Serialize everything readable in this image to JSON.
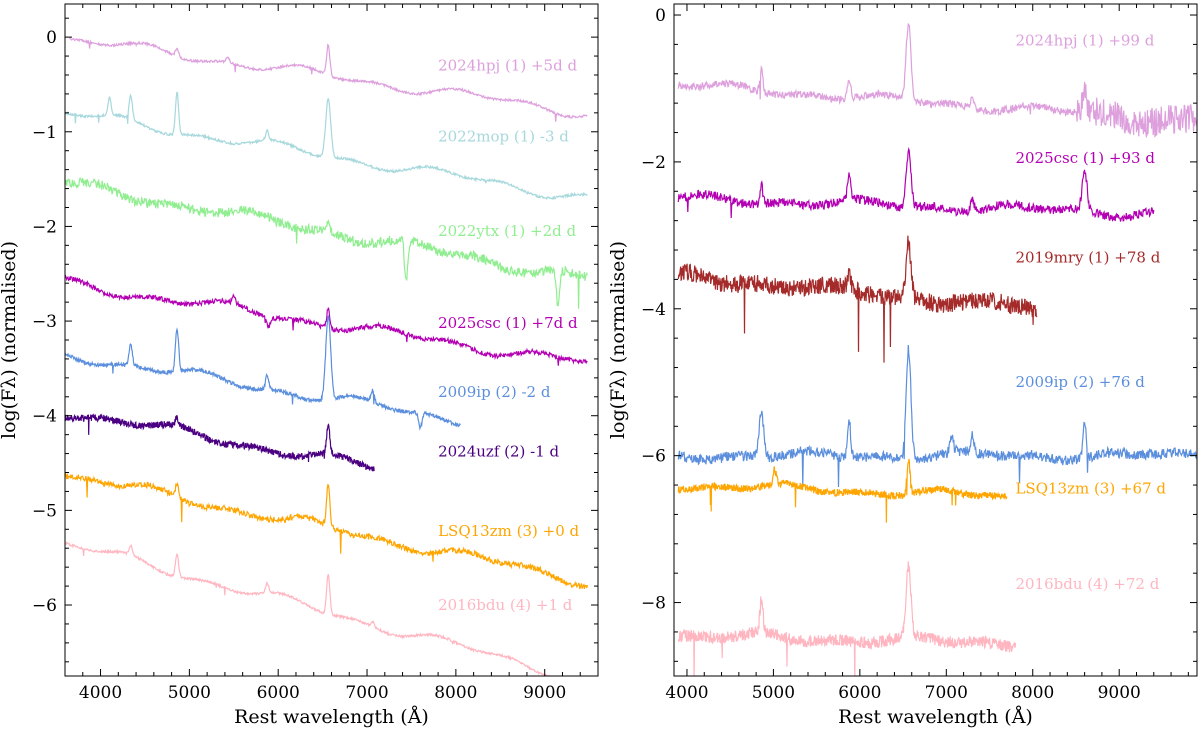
{
  "chart_data": [
    {
      "type": "line",
      "xlabel": "Rest wavelength (Å)",
      "ylabel": "log(Fλ) (normalised)",
      "xlim": [
        3600,
        9600
      ],
      "ylim": [
        -6.75,
        0.35
      ],
      "xticks": [
        4000,
        5000,
        6000,
        7000,
        8000,
        9000
      ],
      "yticks": [
        0,
        -1,
        -2,
        -3,
        -4,
        -5,
        -6
      ],
      "grid": false,
      "legend": "none",
      "series": [
        {
          "name": "2024hpj (1) +5d d",
          "color": "#dda0dd",
          "x_range": [
            3650,
            9480
          ],
          "y_start": -0.02,
          "y_end": -0.8,
          "noise": 0.012,
          "label_xy": [
            7800,
            -0.3
          ],
          "lines": [
            [
              4861,
              0.08
            ],
            [
              6563,
              0.32
            ],
            [
              5430,
              0.06
            ]
          ]
        },
        {
          "name": "2022mop (1) -3 d",
          "color": "#a6d8dc",
          "x_range": [
            3600,
            9480
          ],
          "y_start": -0.8,
          "y_end": -1.7,
          "noise": 0.012,
          "label_xy": [
            7800,
            -1.05
          ],
          "lines": [
            [
              4101,
              0.18
            ],
            [
              4340,
              0.25
            ],
            [
              4861,
              0.45
            ],
            [
              5876,
              0.1
            ],
            [
              6563,
              0.62
            ]
          ]
        },
        {
          "name": "2022ytx (1) +2d d",
          "color": "#90ee90",
          "x_range": [
            3600,
            9480
          ],
          "y_start": -1.55,
          "y_end": -2.55,
          "noise": 0.05,
          "label_xy": [
            7800,
            -2.05
          ],
          "lines": [
            [
              6563,
              0.15
            ],
            [
              7440,
              -0.45
            ],
            [
              9150,
              -0.4
            ]
          ]
        },
        {
          "name": "2025csc (1) +7d d",
          "color": "#b300b3",
          "x_range": [
            3600,
            9480
          ],
          "y_start": -2.6,
          "y_end": -3.45,
          "noise": 0.025,
          "label_xy": [
            7800,
            -3.02
          ],
          "lines": [
            [
              5500,
              0.08
            ],
            [
              5890,
              -0.1
            ],
            [
              6563,
              0.2
            ]
          ]
        },
        {
          "name": "2009ip (2) -2 d",
          "color": "#5b8fdd",
          "x_range": [
            3600,
            8050
          ],
          "y_start": -3.35,
          "y_end": -4.05,
          "noise": 0.02,
          "label_xy": [
            7800,
            -3.75
          ],
          "lines": [
            [
              4340,
              0.22
            ],
            [
              4861,
              0.45
            ],
            [
              5876,
              0.15
            ],
            [
              6563,
              0.88
            ],
            [
              7065,
              0.12
            ],
            [
              7600,
              -0.15
            ]
          ]
        },
        {
          "name": "2024uzf (2) -1 d",
          "color": "#4b0082",
          "x_range": [
            3600,
            7080
          ],
          "y_start": -3.95,
          "y_end": -4.55,
          "noise": 0.035,
          "label_xy": [
            7800,
            -4.38
          ],
          "lines": [
            [
              4861,
              0.08
            ],
            [
              6563,
              0.3
            ]
          ]
        },
        {
          "name": "LSQ13zm (3) +0 d",
          "color": "#ffa500",
          "x_range": [
            3600,
            9480
          ],
          "y_start": -4.62,
          "y_end": -5.75,
          "noise": 0.03,
          "label_xy": [
            7800,
            -5.22
          ],
          "lines": [
            [
              4861,
              0.15
            ],
            [
              6563,
              0.45
            ]
          ]
        },
        {
          "name": "2016bdu (4) +1 d",
          "color": "#ffb6c1",
          "x_range": [
            3600,
            9300
          ],
          "y_start": -5.35,
          "y_end": -6.75,
          "noise": 0.012,
          "label_xy": [
            7800,
            -6.0
          ],
          "lines": [
            [
              4340,
              0.1
            ],
            [
              4861,
              0.25
            ],
            [
              5876,
              0.1
            ],
            [
              6563,
              0.42
            ],
            [
              7065,
              0.05
            ]
          ]
        }
      ]
    },
    {
      "type": "line",
      "xlabel": "Rest wavelength (Å)",
      "ylabel": "log(Fλ) (normalised)",
      "xlim": [
        3850,
        9900
      ],
      "ylim": [
        -9.0,
        0.15
      ],
      "xticks": [
        4000,
        5000,
        6000,
        7000,
        8000,
        9000
      ],
      "yticks": [
        0,
        -2,
        -4,
        -6,
        -8
      ],
      "grid": false,
      "legend": "none",
      "series": [
        {
          "name": "2024hpj (1) +99 d",
          "color": "#dda0dd",
          "x_range": [
            3900,
            9900
          ],
          "y_start": -0.95,
          "y_end": -1.45,
          "noise": 0.05,
          "label_xy": [
            7800,
            -0.35
          ],
          "lines": [
            [
              4861,
              0.3
            ],
            [
              5876,
              0.25
            ],
            [
              6563,
              1.05
            ],
            [
              7300,
              0.15
            ],
            [
              8600,
              0.4
            ]
          ],
          "noisy_tail": 8500
        },
        {
          "name": "2025csc (1) +93 d",
          "color": "#b300b3",
          "x_range": [
            3900,
            9400
          ],
          "y_start": -2.5,
          "y_end": -2.7,
          "noise": 0.06,
          "label_xy": [
            7800,
            -1.95
          ],
          "lines": [
            [
              4861,
              0.25
            ],
            [
              5876,
              0.35
            ],
            [
              6563,
              0.75
            ],
            [
              7300,
              0.2
            ],
            [
              8600,
              0.55
            ]
          ]
        },
        {
          "name": "2019mry (1) +78 d",
          "color": "#a52a2a",
          "x_range": [
            3900,
            8050
          ],
          "y_start": -3.55,
          "y_end": -4.0,
          "noise": 0.12,
          "label_xy": [
            7800,
            -3.3
          ],
          "lines": [
            [
              5876,
              0.25
            ],
            [
              6563,
              0.75
            ]
          ]
        },
        {
          "name": "2009ip (2) +76 d",
          "color": "#5b8fdd",
          "x_range": [
            3900,
            9900
          ],
          "y_start": -6.0,
          "y_end": -6.0,
          "noise": 0.07,
          "label_xy": [
            7800,
            -5.0
          ],
          "lines": [
            [
              4861,
              0.6
            ],
            [
              5876,
              0.5
            ],
            [
              6563,
              1.5
            ],
            [
              7065,
              0.25
            ],
            [
              7300,
              0.25
            ],
            [
              8600,
              0.45
            ]
          ]
        },
        {
          "name": "LSQ13zm (3) +67 d",
          "color": "#ffa500",
          "x_range": [
            3900,
            7700
          ],
          "y_start": -6.4,
          "y_end": -6.55,
          "noise": 0.05,
          "label_xy": [
            7800,
            -6.45
          ],
          "lines": [
            [
              5015,
              0.2
            ],
            [
              6563,
              0.45
            ]
          ]
        },
        {
          "name": "2016bdu (4) +72 d",
          "color": "#ffb6c1",
          "x_range": [
            3900,
            7800
          ],
          "y_start": -8.45,
          "y_end": -8.55,
          "noise": 0.08,
          "label_xy": [
            7800,
            -7.75
          ],
          "lines": [
            [
              4861,
              0.45
            ],
            [
              6563,
              0.95
            ]
          ]
        }
      ]
    }
  ]
}
